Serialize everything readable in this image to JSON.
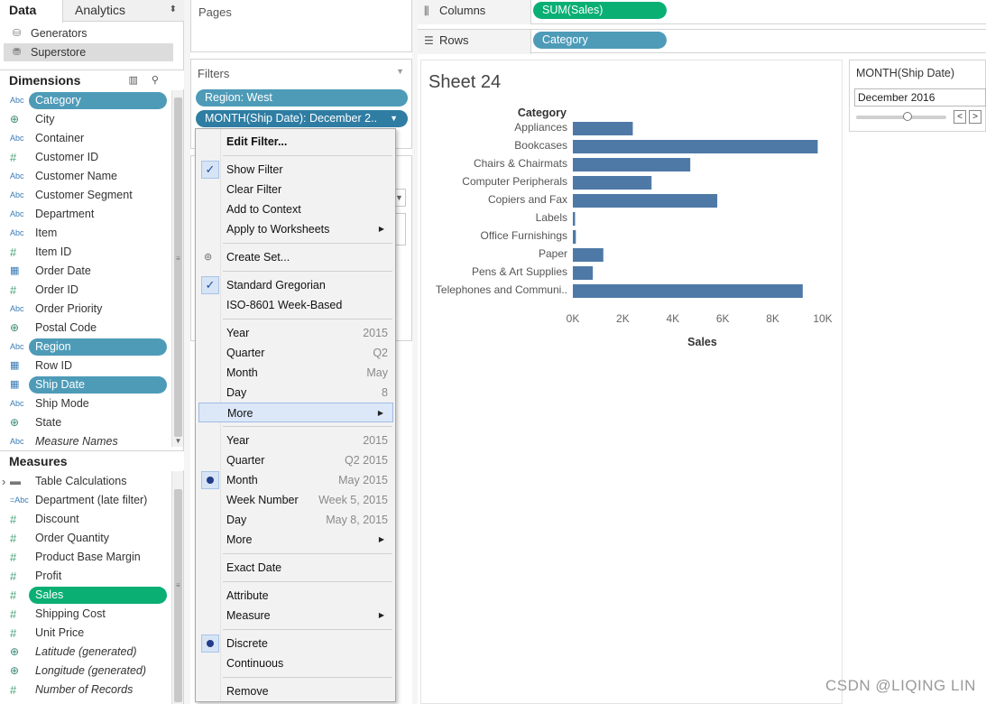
{
  "tabs": {
    "data": "Data",
    "analytics": "Analytics"
  },
  "datasources": [
    {
      "icon": "cylinder-icon",
      "label": "Generators"
    },
    {
      "icon": "datasource-check-icon",
      "label": "Superstore"
    }
  ],
  "dimensions": {
    "title": "Dimensions",
    "tools_label": "▥ ⚲",
    "fields": [
      {
        "type": "Abc",
        "label": "Category",
        "style": "pill"
      },
      {
        "type": "globe",
        "label": "City"
      },
      {
        "type": "Abc",
        "label": "Container"
      },
      {
        "type": "#",
        "label": "Customer ID"
      },
      {
        "type": "Abc",
        "label": "Customer Name"
      },
      {
        "type": "Abc",
        "label": "Customer Segment"
      },
      {
        "type": "Abc",
        "label": "Department"
      },
      {
        "type": "Abc",
        "label": "Item"
      },
      {
        "type": "#",
        "label": "Item ID"
      },
      {
        "type": "cal",
        "label": "Order Date"
      },
      {
        "type": "#",
        "label": "Order ID"
      },
      {
        "type": "Abc",
        "label": "Order Priority"
      },
      {
        "type": "globe",
        "label": "Postal Code"
      },
      {
        "type": "Abc",
        "label": "Region",
        "style": "pill"
      },
      {
        "type": "cal",
        "label": "Row ID"
      },
      {
        "type": "cal",
        "label": "Ship Date",
        "style": "pill"
      },
      {
        "type": "Abc",
        "label": "Ship Mode"
      },
      {
        "type": "globe",
        "label": "State"
      },
      {
        "type": "Abc",
        "label": "Measure Names",
        "italic": true
      }
    ]
  },
  "measures": {
    "title": "Measures",
    "fields": [
      {
        "type": "folder",
        "label": "Table Calculations"
      },
      {
        "type": "=Abc",
        "label": "Department (late filter)"
      },
      {
        "type": "#",
        "label": "Discount"
      },
      {
        "type": "#",
        "label": "Order Quantity"
      },
      {
        "type": "#",
        "label": "Product Base Margin"
      },
      {
        "type": "#",
        "label": "Profit"
      },
      {
        "type": "#",
        "label": "Sales",
        "style": "pill-green"
      },
      {
        "type": "#",
        "label": "Shipping Cost"
      },
      {
        "type": "#",
        "label": "Unit Price"
      },
      {
        "type": "globe",
        "label": "Latitude (generated)",
        "italic": true
      },
      {
        "type": "globe",
        "label": "Longitude (generated)",
        "italic": true
      },
      {
        "type": "#",
        "label": "Number of Records",
        "italic": true
      }
    ]
  },
  "pages": {
    "title": "Pages"
  },
  "filters": {
    "title": "Filters",
    "pills": [
      "Region: West",
      "MONTH(Ship Date): December 2.."
    ]
  },
  "shelves": {
    "columns": {
      "label": "Columns",
      "pill": "SUM(Sales)"
    },
    "rows": {
      "label": "Rows",
      "pill": "Category"
    }
  },
  "sheet": {
    "title": "Sheet 24"
  },
  "filter_card": {
    "title": "MONTH(Ship Date)",
    "value": "December 2016",
    "prev": "<",
    "next": ">"
  },
  "context_menu": {
    "items": [
      {
        "label": "Edit Filter...",
        "bold": true
      },
      {
        "sep": true
      },
      {
        "label": "Show Filter",
        "mark": "check"
      },
      {
        "label": "Clear Filter"
      },
      {
        "label": "Add to Context"
      },
      {
        "label": "Apply to Worksheets",
        "submenu": true
      },
      {
        "sep": true
      },
      {
        "label": "Create Set...",
        "mark": "venn"
      },
      {
        "sep": true
      },
      {
        "label": "Standard Gregorian",
        "mark": "check"
      },
      {
        "label": "ISO-8601 Week-Based"
      },
      {
        "sep": true
      },
      {
        "label": "Year",
        "right": "2015"
      },
      {
        "label": "Quarter",
        "right": "Q2"
      },
      {
        "label": "Month",
        "right": "May"
      },
      {
        "label": "Day",
        "right": "8"
      },
      {
        "label": "More",
        "submenu": true,
        "highlight": true
      },
      {
        "sep": true
      },
      {
        "label": "Year",
        "right": "2015"
      },
      {
        "label": "Quarter",
        "right": "Q2 2015"
      },
      {
        "label": "Month",
        "right": "May 2015",
        "mark": "dot"
      },
      {
        "label": "Week Number",
        "right": "Week 5, 2015"
      },
      {
        "label": "Day",
        "right": "May 8, 2015"
      },
      {
        "label": "More",
        "submenu": true
      },
      {
        "sep": true
      },
      {
        "label": "Exact Date"
      },
      {
        "sep": true
      },
      {
        "label": "Attribute"
      },
      {
        "label": "Measure",
        "submenu": true
      },
      {
        "sep": true
      },
      {
        "label": "Discrete",
        "mark": "dot"
      },
      {
        "label": "Continuous"
      },
      {
        "sep": true
      },
      {
        "label": "Remove"
      }
    ]
  },
  "chart_data": {
    "type": "bar",
    "orientation": "horizontal",
    "row_header": "Category",
    "categories": [
      "Appliances",
      "Bookcases",
      "Chairs & Chairmats",
      "Computer Peripherals",
      "Copiers and Fax",
      "Labels",
      "Office Furnishings",
      "Paper",
      "Pens & Art Supplies",
      "Telephones and Communi.."
    ],
    "values": [
      2400,
      9800,
      4700,
      3150,
      5780,
      90,
      120,
      1220,
      800,
      9200
    ],
    "xlabel": "Sales",
    "xticks": [
      "0K",
      "2K",
      "4K",
      "6K",
      "8K",
      "10K"
    ],
    "xlim": [
      0,
      10000
    ],
    "bar_color": "#4e79a7"
  },
  "watermark": "CSDN @LIQING LIN"
}
